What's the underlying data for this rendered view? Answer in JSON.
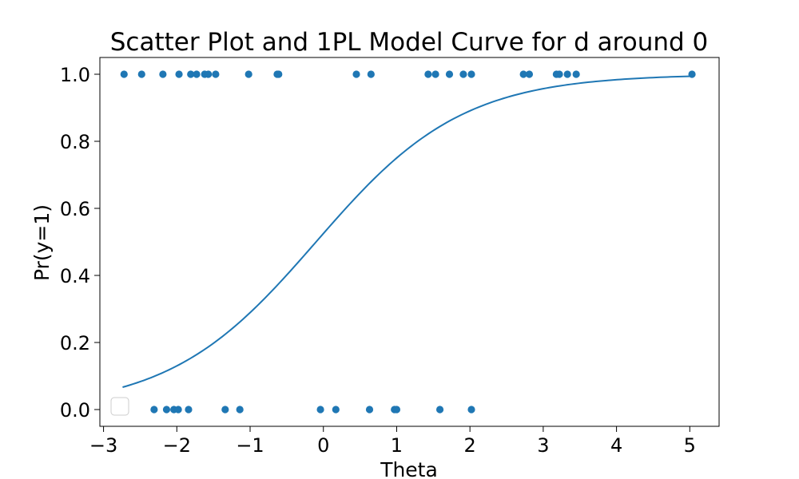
{
  "chart_data": {
    "type": "scatter",
    "title": "Scatter Plot and 1PL Model Curve for d around 0",
    "xlabel": "Theta",
    "ylabel": "Pr(y=1)",
    "xlim": [
      -3.05,
      5.4
    ],
    "ylim": [
      -0.05,
      1.05
    ],
    "xticks": [
      -3,
      -2,
      -1,
      0,
      1,
      2,
      3,
      4,
      5
    ],
    "yticks": [
      0.0,
      0.2,
      0.4,
      0.6,
      0.8,
      1.0
    ],
    "xtick_labels": [
      "−3",
      "−2",
      "−1",
      "0",
      "1",
      "2",
      "3",
      "4",
      "5"
    ],
    "ytick_labels": [
      "0.0",
      "0.2",
      "0.4",
      "0.6",
      "0.8",
      "1.0"
    ],
    "grid": false,
    "legend": {
      "placement": "lower-left",
      "entries": []
    },
    "colors": {
      "points": "#1f77b4",
      "curve": "#1f77b4",
      "axes": "#000000"
    },
    "series": [
      {
        "kind": "scatter",
        "points_y1_x": [
          -2.72,
          -2.48,
          -2.19,
          -1.97,
          -1.81,
          -1.73,
          -1.62,
          -1.57,
          -1.47,
          -1.02,
          -0.63,
          -0.61,
          0.45,
          0.65,
          1.43,
          1.53,
          1.72,
          1.91,
          2.02,
          2.73,
          2.81,
          3.18,
          3.22,
          3.33,
          3.45,
          5.03
        ],
        "points_y0_x": [
          -2.74,
          -2.31,
          -2.14,
          -2.04,
          -1.98,
          -1.84,
          -1.34,
          -1.14,
          -0.04,
          0.17,
          0.63,
          0.97,
          1.0,
          1.59,
          2.02
        ]
      },
      {
        "kind": "line",
        "model": "1PL",
        "difficulty_b": -0.1,
        "x_range": [
          -2.74,
          5.03
        ]
      }
    ]
  }
}
